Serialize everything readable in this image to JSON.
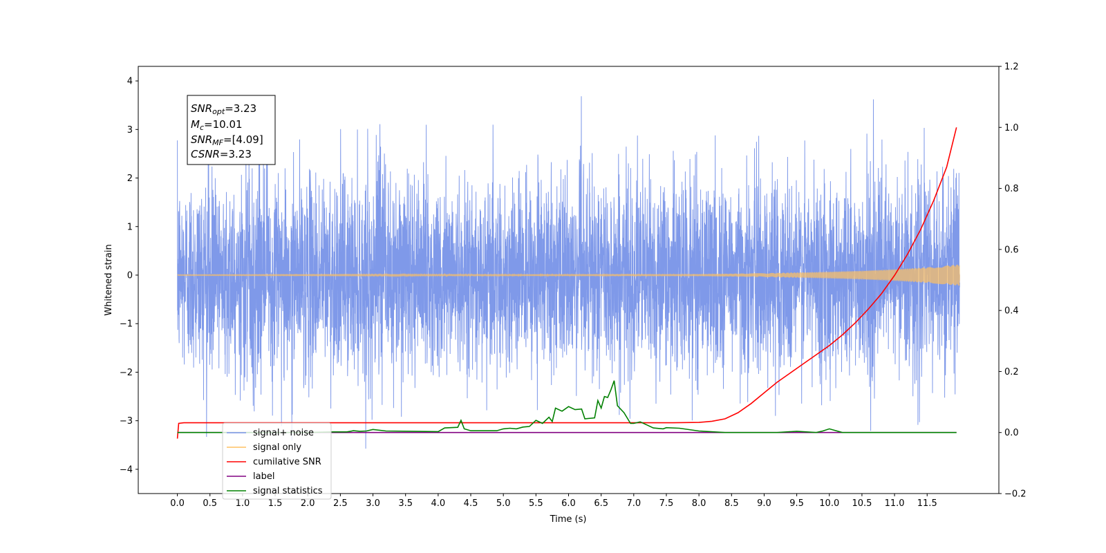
{
  "chart_data": {
    "type": "line",
    "xlabel": "Time (s)",
    "ylabel": "Whitened strain",
    "xlim": [
      -0.6,
      12.6
    ],
    "ylim": [
      -4.5,
      4.3
    ],
    "y2lim": [
      -0.2,
      1.2
    ],
    "xticks": [
      0.0,
      0.5,
      1.0,
      1.5,
      2.0,
      2.5,
      3.0,
      3.5,
      4.0,
      4.5,
      5.0,
      5.5,
      6.0,
      6.5,
      7.0,
      7.5,
      8.0,
      8.5,
      9.0,
      9.5,
      10.0,
      10.5,
      11.0,
      11.5
    ],
    "xtick_labels": [
      "0.0",
      "0.5",
      "1.0",
      "1.5",
      "2.0",
      "2.5",
      "3.0",
      "3.5",
      "4.0",
      "4.5",
      "5.0",
      "5.5",
      "6.0",
      "6.5",
      "7.0",
      "7.5",
      "8.0",
      "8.5",
      "9.0",
      "9.5",
      "10.0",
      "10.5",
      "11.0",
      "11.5"
    ],
    "yticks": [
      -4,
      -3,
      -2,
      -1,
      0,
      1,
      2,
      3,
      4
    ],
    "ytick_labels": [
      "−4",
      "−3",
      "−2",
      "−1",
      "0",
      "1",
      "2",
      "3",
      "4"
    ],
    "y2ticks": [
      -0.2,
      0.0,
      0.2,
      0.4,
      0.6,
      0.8,
      1.0,
      1.2
    ],
    "y2tick_labels": [
      "−0.2",
      "0.0",
      "0.2",
      "0.4",
      "0.6",
      "0.8",
      "1.0",
      "1.2"
    ],
    "grid": false,
    "legend_placement": "lower-left",
    "annotation": {
      "lines": [
        {
          "main": "SNR",
          "sub": "opt",
          "rest": "=3.23"
        },
        {
          "main": "M",
          "sub": "c",
          "rest": "=10.01"
        },
        {
          "main": "SNR",
          "sub": "MF",
          "rest": "=[4.09]"
        },
        {
          "main": "CSNR",
          "sub": "",
          "rest": "=3.23"
        }
      ]
    },
    "series": [
      {
        "name": "signal+ noise",
        "axis": "left",
        "color": "#7893e8",
        "kind": "noise",
        "t_start": 0.0,
        "t_end": 12.0,
        "amplitude_range": [
          -3.6,
          3.9
        ]
      },
      {
        "name": "signal only",
        "axis": "left",
        "color": "#ffc060",
        "kind": "chirp",
        "envelope": {
          "t": [
            0.0,
            8.0,
            9.0,
            10.0,
            10.5,
            11.0,
            11.5,
            12.0
          ],
          "amp": [
            0.01,
            0.02,
            0.04,
            0.07,
            0.09,
            0.12,
            0.16,
            0.22
          ]
        }
      },
      {
        "name": "cumilative SNR",
        "axis": "right",
        "color": "#ff0000",
        "x": [
          0.0,
          0.02,
          0.1,
          7.6,
          8.0,
          8.2,
          8.4,
          8.6,
          8.8,
          9.0,
          9.2,
          9.4,
          9.6,
          9.8,
          10.0,
          10.2,
          10.4,
          10.6,
          10.8,
          11.0,
          11.2,
          11.4,
          11.6,
          11.8,
          11.95
        ],
        "y": [
          -0.02,
          0.03,
          0.032,
          0.032,
          0.033,
          0.037,
          0.045,
          0.065,
          0.095,
          0.13,
          0.165,
          0.195,
          0.225,
          0.255,
          0.285,
          0.32,
          0.36,
          0.405,
          0.455,
          0.515,
          0.585,
          0.665,
          0.76,
          0.87,
          1.0
        ]
      },
      {
        "name": "label",
        "axis": "right",
        "color": "#800080",
        "x": [
          0.0,
          11.95
        ],
        "y": [
          0.0,
          0.0
        ]
      },
      {
        "name": "signal statistics",
        "axis": "right",
        "color": "#008000",
        "x": [
          0.0,
          2.0,
          2.4,
          2.6,
          2.7,
          2.8,
          2.9,
          3.0,
          3.2,
          3.6,
          4.0,
          4.1,
          4.3,
          4.35,
          4.4,
          4.5,
          4.9,
          5.0,
          5.1,
          5.2,
          5.3,
          5.4,
          5.5,
          5.6,
          5.7,
          5.75,
          5.8,
          5.9,
          6.0,
          6.1,
          6.2,
          6.25,
          6.4,
          6.45,
          6.5,
          6.55,
          6.6,
          6.65,
          6.7,
          6.75,
          6.85,
          6.95,
          7.0,
          7.1,
          7.2,
          7.3,
          7.45,
          7.5,
          7.7,
          8.0,
          8.4,
          9.2,
          9.5,
          9.8,
          9.9,
          10.0,
          10.2,
          11.95
        ],
        "y": [
          0.0,
          0.0,
          0.002,
          0.002,
          0.006,
          0.004,
          0.005,
          0.01,
          0.005,
          0.004,
          0.003,
          0.015,
          0.017,
          0.04,
          0.012,
          0.006,
          0.006,
          0.012,
          0.014,
          0.012,
          0.018,
          0.02,
          0.04,
          0.03,
          0.05,
          0.036,
          0.08,
          0.07,
          0.085,
          0.075,
          0.077,
          0.045,
          0.048,
          0.105,
          0.08,
          0.118,
          0.115,
          0.14,
          0.17,
          0.088,
          0.065,
          0.03,
          0.03,
          0.035,
          0.025,
          0.015,
          0.012,
          0.016,
          0.014,
          0.005,
          0.0,
          0.0,
          0.004,
          0.0,
          0.005,
          0.012,
          0.0,
          0.0
        ]
      }
    ]
  }
}
